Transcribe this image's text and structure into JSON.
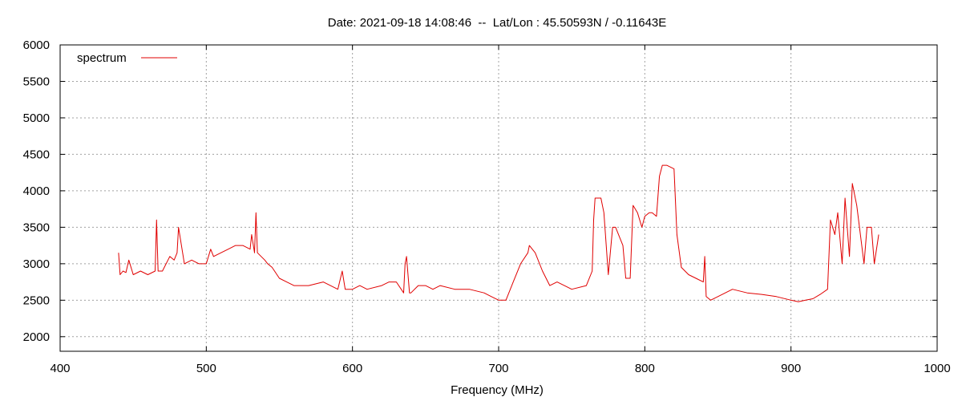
{
  "chart_data": {
    "type": "line",
    "title": "Date: 2021-09-18 14:08:46  --  Lat/Lon : 45.50593N / -0.11643E",
    "xlabel": "Frequency (MHz)",
    "ylabel": "",
    "xlim": [
      400,
      1000
    ],
    "ylim": [
      1800,
      6000
    ],
    "xticks": [
      400,
      500,
      600,
      700,
      800,
      900,
      1000
    ],
    "yticks": [
      2000,
      2500,
      3000,
      3500,
      4000,
      4500,
      5000,
      5500,
      6000
    ],
    "grid": true,
    "legend_position": "top-left",
    "series": [
      {
        "name": "spectrum",
        "color": "#e00000",
        "x": [
          440,
          441,
          443,
          445,
          447,
          450,
          455,
          460,
          465,
          466,
          467,
          470,
          475,
          478,
          480,
          481,
          485,
          490,
          495,
          500,
          503,
          505,
          510,
          515,
          520,
          525,
          530,
          531,
          533,
          534,
          535,
          540,
          542,
          545,
          550,
          555,
          560,
          570,
          580,
          590,
          593,
          595,
          600,
          605,
          610,
          620,
          625,
          630,
          635,
          636,
          637,
          639,
          640,
          645,
          650,
          655,
          660,
          670,
          680,
          690,
          695,
          700,
          705,
          710,
          715,
          720,
          721,
          725,
          730,
          735,
          740,
          745,
          750,
          760,
          764,
          765,
          766,
          770,
          772,
          775,
          778,
          780,
          785,
          787,
          790,
          792,
          795,
          798,
          800,
          803,
          805,
          808,
          810,
          812,
          815,
          820,
          822,
          825,
          830,
          835,
          840,
          841,
          842,
          845,
          850,
          860,
          870,
          880,
          890,
          900,
          905,
          910,
          915,
          920,
          925,
          927,
          930,
          932,
          935,
          937,
          940,
          942,
          945,
          950,
          952,
          955,
          957,
          960
        ],
        "values": [
          3150,
          2850,
          2900,
          2880,
          3050,
          2850,
          2900,
          2850,
          2900,
          3600,
          2900,
          2900,
          3100,
          3050,
          3150,
          3500,
          3000,
          3050,
          3000,
          3000,
          3200,
          3100,
          3150,
          3200,
          3250,
          3250,
          3200,
          3400,
          3150,
          3700,
          3150,
          3050,
          3000,
          2950,
          2800,
          2750,
          2700,
          2700,
          2750,
          2650,
          2900,
          2650,
          2650,
          2700,
          2650,
          2700,
          2750,
          2750,
          2600,
          3000,
          3100,
          2600,
          2600,
          2700,
          2700,
          2650,
          2700,
          2650,
          2650,
          2600,
          2550,
          2500,
          2500,
          2750,
          3000,
          3150,
          3250,
          3150,
          2900,
          2700,
          2750,
          2700,
          2650,
          2700,
          2900,
          3600,
          3900,
          3900,
          3700,
          2850,
          3500,
          3500,
          3250,
          2800,
          2800,
          3800,
          3700,
          3500,
          3650,
          3700,
          3700,
          3650,
          4200,
          4350,
          4350,
          4300,
          3400,
          2950,
          2850,
          2800,
          2750,
          3100,
          2550,
          2500,
          2550,
          2650,
          2600,
          2580,
          2550,
          2500,
          2480,
          2500,
          2520,
          2580,
          2650,
          3600,
          3400,
          3700,
          3000,
          3900,
          3100,
          4100,
          3800,
          3000,
          3500,
          3500,
          3000,
          3400
        ]
      }
    ]
  }
}
